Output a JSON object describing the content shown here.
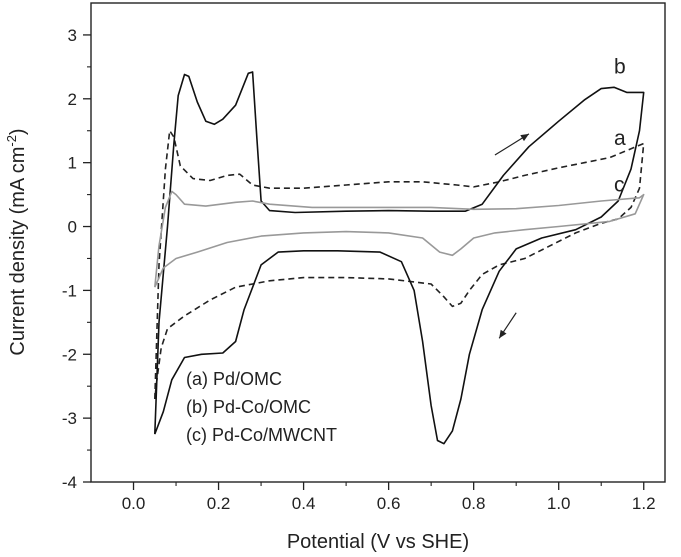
{
  "chart_data": {
    "type": "line",
    "title": "",
    "xlabel": "Potential (V vs SHE)",
    "ylabel_main": "Current density (mA cm",
    "ylabel_sup": "-2",
    "ylabel_close": ")",
    "xlim": [
      -0.1,
      1.25
    ],
    "ylim": [
      -4,
      3.5
    ],
    "xticks": [
      "0.0",
      "0.2",
      "0.4",
      "0.6",
      "0.8",
      "1.0",
      "1.2"
    ],
    "yticks": [
      "-4",
      "-3",
      "-2",
      "-1",
      "0",
      "1",
      "2",
      "3"
    ],
    "grid": false,
    "legend_position": "bottom-left",
    "legend": [
      "(a) Pd/OMC",
      "(b) Pd-Co/OMC",
      "(c) Pd-Co/MWCNT"
    ],
    "series": [
      {
        "name": "a",
        "color": "#222222",
        "dash": "dashed",
        "points": [
          [
            0.05,
            -2.7
          ],
          [
            0.06,
            -0.6
          ],
          [
            0.075,
            0.9
          ],
          [
            0.085,
            1.5
          ],
          [
            0.095,
            1.4
          ],
          [
            0.11,
            0.95
          ],
          [
            0.14,
            0.75
          ],
          [
            0.18,
            0.72
          ],
          [
            0.22,
            0.8
          ],
          [
            0.25,
            0.82
          ],
          [
            0.28,
            0.65
          ],
          [
            0.32,
            0.6
          ],
          [
            0.4,
            0.6
          ],
          [
            0.5,
            0.65
          ],
          [
            0.6,
            0.7
          ],
          [
            0.68,
            0.7
          ],
          [
            0.76,
            0.65
          ],
          [
            0.8,
            0.62
          ],
          [
            0.86,
            0.7
          ],
          [
            0.92,
            0.8
          ],
          [
            1.0,
            0.92
          ],
          [
            1.06,
            1.0
          ],
          [
            1.12,
            1.08
          ],
          [
            1.2,
            1.3
          ],
          [
            1.2,
            1.3
          ],
          [
            1.19,
            0.6
          ],
          [
            1.17,
            0.3
          ],
          [
            1.14,
            0.12
          ],
          [
            1.1,
            0.05
          ],
          [
            1.04,
            -0.1
          ],
          [
            0.98,
            -0.3
          ],
          [
            0.92,
            -0.5
          ],
          [
            0.86,
            -0.6
          ],
          [
            0.82,
            -0.75
          ],
          [
            0.79,
            -1.0
          ],
          [
            0.77,
            -1.2
          ],
          [
            0.75,
            -1.25
          ],
          [
            0.73,
            -1.1
          ],
          [
            0.7,
            -0.9
          ],
          [
            0.6,
            -0.82
          ],
          [
            0.5,
            -0.8
          ],
          [
            0.4,
            -0.8
          ],
          [
            0.32,
            -0.85
          ],
          [
            0.24,
            -0.95
          ],
          [
            0.18,
            -1.15
          ],
          [
            0.12,
            -1.4
          ],
          [
            0.08,
            -1.6
          ],
          [
            0.065,
            -1.9
          ],
          [
            0.055,
            -2.4
          ],
          [
            0.05,
            -2.7
          ]
        ]
      },
      {
        "name": "b",
        "color": "#111111",
        "dash": "solid",
        "points": [
          [
            0.05,
            -3.25
          ],
          [
            0.06,
            -1.5
          ],
          [
            0.08,
            0.0
          ],
          [
            0.095,
            1.3
          ],
          [
            0.105,
            2.05
          ],
          [
            0.12,
            2.38
          ],
          [
            0.13,
            2.35
          ],
          [
            0.15,
            1.95
          ],
          [
            0.17,
            1.65
          ],
          [
            0.19,
            1.6
          ],
          [
            0.21,
            1.68
          ],
          [
            0.24,
            1.9
          ],
          [
            0.27,
            2.4
          ],
          [
            0.28,
            2.42
          ],
          [
            0.29,
            1.4
          ],
          [
            0.3,
            0.4
          ],
          [
            0.32,
            0.25
          ],
          [
            0.38,
            0.22
          ],
          [
            0.5,
            0.24
          ],
          [
            0.6,
            0.25
          ],
          [
            0.7,
            0.24
          ],
          [
            0.78,
            0.24
          ],
          [
            0.82,
            0.35
          ],
          [
            0.87,
            0.8
          ],
          [
            0.93,
            1.25
          ],
          [
            1.0,
            1.65
          ],
          [
            1.06,
            1.98
          ],
          [
            1.1,
            2.16
          ],
          [
            1.13,
            2.18
          ],
          [
            1.16,
            2.1
          ],
          [
            1.2,
            2.1
          ],
          [
            1.2,
            2.1
          ],
          [
            1.19,
            1.5
          ],
          [
            1.17,
            0.9
          ],
          [
            1.14,
            0.4
          ],
          [
            1.1,
            0.15
          ],
          [
            1.04,
            -0.05
          ],
          [
            0.96,
            -0.18
          ],
          [
            0.9,
            -0.35
          ],
          [
            0.86,
            -0.7
          ],
          [
            0.82,
            -1.3
          ],
          [
            0.79,
            -2.0
          ],
          [
            0.77,
            -2.7
          ],
          [
            0.75,
            -3.2
          ],
          [
            0.73,
            -3.4
          ],
          [
            0.715,
            -3.35
          ],
          [
            0.7,
            -2.8
          ],
          [
            0.68,
            -1.8
          ],
          [
            0.66,
            -1.0
          ],
          [
            0.63,
            -0.55
          ],
          [
            0.58,
            -0.4
          ],
          [
            0.48,
            -0.38
          ],
          [
            0.4,
            -0.38
          ],
          [
            0.34,
            -0.4
          ],
          [
            0.3,
            -0.6
          ],
          [
            0.26,
            -1.3
          ],
          [
            0.24,
            -1.8
          ],
          [
            0.21,
            -1.98
          ],
          [
            0.16,
            -2.0
          ],
          [
            0.12,
            -2.05
          ],
          [
            0.09,
            -2.4
          ],
          [
            0.07,
            -2.9
          ],
          [
            0.05,
            -3.25
          ]
        ]
      },
      {
        "name": "c",
        "color": "#999999",
        "dash": "solid",
        "points": [
          [
            0.05,
            -0.95
          ],
          [
            0.06,
            -0.3
          ],
          [
            0.075,
            0.3
          ],
          [
            0.09,
            0.55
          ],
          [
            0.1,
            0.5
          ],
          [
            0.12,
            0.35
          ],
          [
            0.17,
            0.32
          ],
          [
            0.24,
            0.38
          ],
          [
            0.28,
            0.4
          ],
          [
            0.32,
            0.35
          ],
          [
            0.42,
            0.3
          ],
          [
            0.55,
            0.3
          ],
          [
            0.7,
            0.3
          ],
          [
            0.8,
            0.27
          ],
          [
            0.9,
            0.28
          ],
          [
            1.0,
            0.33
          ],
          [
            1.1,
            0.4
          ],
          [
            1.19,
            0.45
          ],
          [
            1.2,
            0.5
          ],
          [
            1.2,
            0.5
          ],
          [
            1.18,
            0.2
          ],
          [
            1.12,
            0.08
          ],
          [
            1.0,
            0.0
          ],
          [
            0.92,
            -0.05
          ],
          [
            0.85,
            -0.1
          ],
          [
            0.8,
            -0.18
          ],
          [
            0.77,
            -0.35
          ],
          [
            0.75,
            -0.45
          ],
          [
            0.72,
            -0.4
          ],
          [
            0.68,
            -0.18
          ],
          [
            0.6,
            -0.1
          ],
          [
            0.5,
            -0.08
          ],
          [
            0.4,
            -0.1
          ],
          [
            0.3,
            -0.15
          ],
          [
            0.22,
            -0.25
          ],
          [
            0.15,
            -0.4
          ],
          [
            0.1,
            -0.5
          ],
          [
            0.07,
            -0.65
          ],
          [
            0.05,
            -0.95
          ]
        ]
      }
    ],
    "annotations": [
      {
        "text": "b",
        "x": 1.13,
        "y": 2.4
      },
      {
        "text": "a",
        "x": 1.13,
        "y": 1.28
      },
      {
        "text": "c",
        "x": 1.13,
        "y": 0.55
      }
    ],
    "arrows": [
      {
        "from": [
          0.85,
          1.12
        ],
        "to": [
          0.93,
          1.45
        ]
      },
      {
        "from": [
          0.9,
          -1.35
        ],
        "to": [
          0.86,
          -1.75
        ]
      }
    ]
  }
}
